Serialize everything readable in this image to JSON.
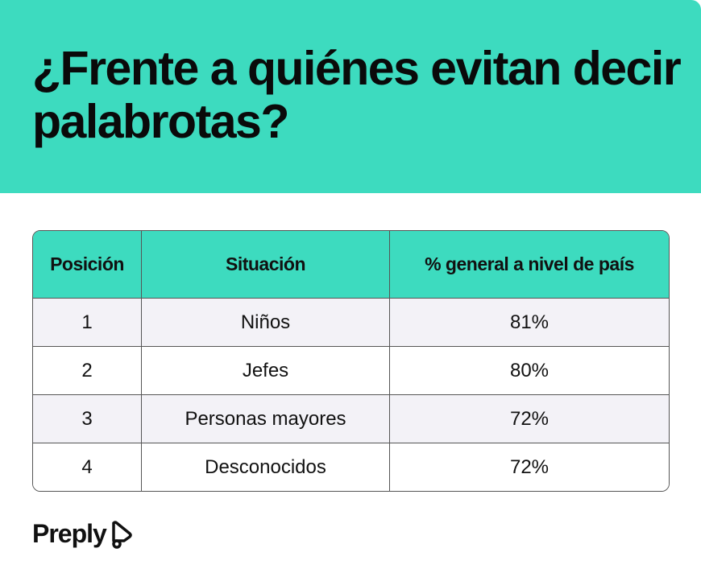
{
  "title": "¿Frente a quiénes evitan decir palabrotas?",
  "colors": {
    "accent": "#3ddbbf",
    "row_alt": "#f3f2f7"
  },
  "chart_data": {
    "type": "table",
    "columns": [
      "Posición",
      "Situación",
      "% general a nivel de país"
    ],
    "rows": [
      [
        "1",
        "Niños",
        "81%"
      ],
      [
        "2",
        "Jefes",
        "80%"
      ],
      [
        "3",
        "Personas mayores",
        "72%"
      ],
      [
        "4",
        "Desconocidos",
        "72%"
      ]
    ]
  },
  "brand": {
    "name": "Preply",
    "icon": "preply-logo-icon"
  }
}
